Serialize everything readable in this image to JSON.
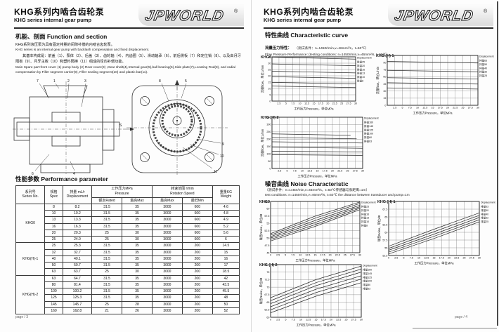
{
  "header": {
    "title_cn": "KHG系列内啮合齿轮泵",
    "title_en": "KHG series internal gear pump",
    "logo": "JPWORLD",
    "logo_reg": "®"
  },
  "page_left": {
    "function_section": {
      "heading": "机能、剖面 Function and section",
      "paragraphs": [
        "KHG系列液压泵为具有固定排量的间隙补偿的内啮合齿轮泵。",
        "KHG series is an internal gear pump with backlash compensation and fixed displacement.",
        "其基本构成是：前盖（1）、泵体（2）、后盖（3）、齿轮轴（4）、内齿圈（5）、滑动轴承（6）、前后侧板（7）和定位销（8）、以及由月牙隔板（9）、月牙主板（10）和塑料隔棒（11）组成的径向补偿功能。",
        "Main Spare part:front cover (1)  pump body (2) Rear cover(3) ,Gear shaft(4),Internal gear(5),ball bearing(6),Side plate(7),Locating Rod(8), and radial compensation by Filler segment carrier(9), Filler sealing segment(10) and plastic bar(11)."
      ]
    },
    "diagram": {
      "callouts": [
        "7",
        "1",
        "2",
        "3",
        "6",
        "4",
        "8",
        "5",
        "9",
        "10",
        "11"
      ],
      "s_label": "S"
    },
    "performance": {
      "heading": "性能参数 Performance parameter",
      "table": {
        "headers": {
          "series_cn": "系列号",
          "series_en": "Series No.",
          "spec_cn": "规格",
          "spec_en": "Spec",
          "disp_cn": "排量 mL/r",
          "disp_en": "Displacement",
          "pressure_cn": "工作压力MPa",
          "pressure_en": "Pressure",
          "rated": "额定Rated",
          "pmax": "最高Max",
          "speed_cn": "转速范围 r/min",
          "speed_en": "Rotation Speed",
          "smax": "最高Max",
          "smin": "最低Min",
          "weight_cn": "重量KG",
          "weight_en": "Weight"
        },
        "groups": [
          {
            "series": "KHG0",
            "rows": [
              [
                "8",
                "8.2",
                "31.5",
                "35",
                "3000",
                "600",
                "4.6"
              ],
              [
                "10",
                "10.2",
                "31.5",
                "35",
                "3000",
                "600",
                "4.8"
              ],
              [
                "13",
                "13.3",
                "31.5",
                "35",
                "3000",
                "600",
                "4.9"
              ],
              [
                "16",
                "16.3",
                "31.5",
                "35",
                "3000",
                "600",
                "5.2"
              ],
              [
                "20",
                "20.3",
                "25",
                "30",
                "3000",
                "600",
                "5.6"
              ],
              [
                "25",
                "24.0",
                "25",
                "30",
                "3000",
                "600",
                "6"
              ]
            ]
          },
          {
            "series": "KHG(H)-1",
            "rows": [
              [
                "25",
                "25.3",
                "31.5",
                "35",
                "3000",
                "200",
                "14.5"
              ],
              [
                "32",
                "32.7",
                "31.5",
                "35",
                "3000",
                "200",
                "15"
              ],
              [
                "40",
                "40.1",
                "31.5",
                "35",
                "3000",
                "200",
                "16"
              ],
              [
                "50",
                "50.7",
                "31.5",
                "35",
                "3000",
                "200",
                "17"
              ],
              [
                "63",
                "63.7",
                "25",
                "30",
                "3000",
                "200",
                "18.5"
              ]
            ]
          },
          {
            "series": "KHG(H)-2",
            "rows": [
              [
                "63",
                "64.7",
                "31.5",
                "35",
                "3000",
                "200",
                "42"
              ],
              [
                "80",
                "81.4",
                "31.5",
                "35",
                "3000",
                "200",
                "43.5"
              ],
              [
                "100",
                "100.2",
                "31.5",
                "35",
                "3000",
                "200",
                "45.5"
              ],
              [
                "125",
                "125.3",
                "31.5",
                "35",
                "3000",
                "200",
                "48"
              ],
              [
                "145",
                "145.7",
                "25",
                "28",
                "3000",
                "200",
                "50"
              ],
              [
                "160",
                "162.8",
                "21",
                "26",
                "3000",
                "200",
                "52"
              ]
            ]
          }
        ]
      }
    },
    "footer": "page / 3"
  },
  "page_right": {
    "curve_section": {
      "heading": "特性曲线 Characteristic  curve",
      "flow_label_cn": "流量压力特性：",
      "flow_cond_cn": "（测试条件：n=1450r/min,v=46mm²/s，t=50℃）",
      "flow_cond_en": "Flow  Pressure  Performance:  (testing conditions:  n=1450r/min,v=46mm²/s,  t=50℃)"
    },
    "noise_section": {
      "heading": "噪音曲线 Noise Characteristic",
      "cond_cn": "（测试条件：n=1450r/min,v=46mm²/s，t=50℃传感器与泵距离=1m）",
      "cond_en": "test conditions:  n=1450r/min,v=46mm²/s,  t=50℃  the  distance between transducer and pump=1m"
    },
    "footer": "page / 4"
  },
  "chart_data": [
    {
      "type": "line",
      "title": "KHG0",
      "xlabel": "工作压力Pressure，单位MPa",
      "ylabel": "流量flow，单位L/min",
      "legend_title": "Displacement",
      "legend_position": "right",
      "grid": true,
      "xlim": [
        0,
        30
      ],
      "ylim": [
        0,
        35
      ],
      "xticks": [
        2.5,
        5,
        7.5,
        10,
        12.5,
        15,
        17.5,
        20,
        22.5,
        25,
        27.5,
        30
      ],
      "yticks": [
        0,
        5,
        10,
        15,
        20,
        25,
        30,
        35
      ],
      "series": [
        {
          "label": "排量25",
          "points": [
            [
              0,
              34.8
            ],
            [
              30,
              33.2
            ]
          ]
        },
        {
          "label": "排量20",
          "points": [
            [
              0,
              29.4
            ],
            [
              30,
              28.0
            ]
          ]
        },
        {
          "label": "排量16",
          "points": [
            [
              0,
              23.6
            ],
            [
              30,
              22.3
            ]
          ]
        },
        {
          "label": "排量13",
          "points": [
            [
              0,
              19.3
            ],
            [
              30,
              18.0
            ]
          ]
        },
        {
          "label": "排量10",
          "points": [
            [
              0,
              14.8
            ],
            [
              30,
              13.6
            ]
          ]
        },
        {
          "label": "排量8",
          "points": [
            [
              0,
              11.9
            ],
            [
              30,
              10.7
            ]
          ]
        }
      ]
    },
    {
      "type": "line",
      "title": "KHG (H) 1",
      "xlabel": "工作压力Pressure，单位MPa",
      "ylabel": "流量flow，单位L/min",
      "legend_title": "Displacement",
      "legend_position": "right",
      "grid": true,
      "xlim": [
        0,
        30
      ],
      "ylim": [
        0,
        105
      ],
      "xticks": [
        2.5,
        5,
        7.5,
        10,
        12.5,
        15,
        17.5,
        20,
        22.5,
        25,
        27.5,
        30
      ],
      "yticks": [
        0,
        15,
        30,
        45,
        60,
        75,
        90,
        105
      ],
      "series": [
        {
          "label": "排量63",
          "points": [
            [
              0,
              92.4
            ],
            [
              30,
              89.0
            ]
          ]
        },
        {
          "label": "排量50",
          "points": [
            [
              0,
              73.5
            ],
            [
              30,
              70.5
            ]
          ]
        },
        {
          "label": "排量40",
          "points": [
            [
              0,
              58.1
            ],
            [
              30,
              55.5
            ]
          ]
        },
        {
          "label": "排量32",
          "points": [
            [
              0,
              47.4
            ],
            [
              30,
              44.8
            ]
          ]
        },
        {
          "label": "排量25",
          "points": [
            [
              0,
              36.7
            ],
            [
              30,
              34.2
            ]
          ]
        }
      ]
    },
    {
      "type": "line",
      "title": "KHG (H) 2",
      "xlabel": "工作压力Pressure，单位MPa",
      "ylabel": "流量flow，单位L/min",
      "legend_title": "Displacement",
      "legend_position": "right",
      "grid": true,
      "xlim": [
        0,
        30
      ],
      "ylim": [
        0,
        350
      ],
      "xticks": [
        2.5,
        5,
        7.5,
        10,
        12.5,
        15,
        17.5,
        20,
        22.5,
        25,
        27.5,
        30
      ],
      "yticks": [
        0,
        50,
        100,
        150,
        200,
        250,
        300,
        350
      ],
      "series": [
        {
          "label": "排量160",
          "points": [
            [
              0,
              236
            ],
            [
              26,
              227
            ]
          ]
        },
        {
          "label": "排量145",
          "points": [
            [
              0,
              211
            ],
            [
              28,
              203
            ]
          ]
        },
        {
          "label": "排量125",
          "points": [
            [
              0,
              182
            ],
            [
              30,
              174
            ]
          ]
        },
        {
          "label": "排量100",
          "points": [
            [
              0,
              145
            ],
            [
              30,
              138
            ]
          ]
        },
        {
          "label": "排量80",
          "points": [
            [
              0,
              118
            ],
            [
              30,
              112
            ]
          ]
        },
        {
          "label": "排量63",
          "points": [
            [
              0,
              94
            ],
            [
              30,
              89
            ]
          ]
        }
      ]
    },
    {
      "type": "line",
      "title": "KHG0",
      "xlabel": "工作压力Pressure，单位MPa",
      "ylabel": "噪音Noise，单位dB",
      "legend_title": "Displacement",
      "legend_position": "right",
      "grid": true,
      "xlim": [
        0,
        30
      ],
      "ylim": [
        45,
        62.5
      ],
      "xticks": [
        0,
        2.5,
        5,
        7.5,
        10,
        12.5,
        15,
        17.5,
        20,
        22.5,
        25,
        27.5,
        30
      ],
      "yticks": [
        45,
        47.5,
        50,
        52.5,
        55,
        57.5,
        60,
        62.5
      ],
      "series": [
        {
          "label": "排量25",
          "points": [
            [
              0,
              51.5
            ],
            [
              15,
              57.5
            ],
            [
              30,
              62.3
            ]
          ]
        },
        {
          "label": "排量20",
          "points": [
            [
              0,
              51.0
            ],
            [
              15,
              56.8
            ],
            [
              30,
              61.8
            ]
          ]
        },
        {
          "label": "排量16",
          "points": [
            [
              0,
              50.5
            ],
            [
              15,
              56.0
            ],
            [
              30,
              61.2
            ]
          ]
        },
        {
          "label": "排量13",
          "points": [
            [
              0,
              50.0
            ],
            [
              15,
              55.3
            ],
            [
              30,
              60.7
            ]
          ]
        },
        {
          "label": "排量10",
          "points": [
            [
              0,
              49.5
            ],
            [
              15,
              54.6
            ],
            [
              30,
              60.2
            ]
          ]
        },
        {
          "label": "排量8",
          "points": [
            [
              0,
              49.0
            ],
            [
              15,
              54.0
            ],
            [
              30,
              59.7
            ]
          ]
        }
      ]
    },
    {
      "type": "line",
      "title": "KHG (H) 1",
      "xlabel": "工作压力Pressure，单位MPa",
      "ylabel": "噪音Noise，单位dB",
      "legend_title": "Displacement",
      "legend_position": "right",
      "grid": true,
      "xlim": [
        0,
        30
      ],
      "ylim": [
        52.5,
        70
      ],
      "xticks": [
        0,
        2.5,
        5,
        7.5,
        10,
        12.5,
        15,
        17.5,
        20,
        22.5,
        25,
        27.5,
        30
      ],
      "yticks": [
        52.5,
        55,
        57.5,
        60,
        62.5,
        65,
        67.5,
        70
      ],
      "series": [
        {
          "label": "排量63",
          "points": [
            [
              0,
              55.5
            ],
            [
              15,
              61.0
            ],
            [
              30,
              66.3
            ]
          ]
        },
        {
          "label": "排量50",
          "points": [
            [
              0,
              54.8
            ],
            [
              15,
              60.2
            ],
            [
              30,
              65.5
            ]
          ]
        },
        {
          "label": "排量40",
          "points": [
            [
              0,
              54.2
            ],
            [
              15,
              59.4
            ],
            [
              30,
              64.8
            ]
          ]
        },
        {
          "label": "排量32",
          "points": [
            [
              0,
              53.6
            ],
            [
              15,
              58.7
            ],
            [
              30,
              64.1
            ]
          ]
        },
        {
          "label": "排量25",
          "points": [
            [
              0,
              53.0
            ],
            [
              15,
              58.0
            ],
            [
              30,
              63.4
            ]
          ]
        }
      ]
    },
    {
      "type": "line",
      "title": "KHG (H) 2",
      "xlabel": "工作压力Pressure，单位MPa",
      "ylabel": "噪音Noise，单位dB",
      "legend_title": "Displacement",
      "legend_position": "right",
      "grid": true,
      "xlim": [
        0,
        30
      ],
      "ylim": [
        60,
        77.5
      ],
      "xticks": [
        0,
        2.5,
        5,
        7.5,
        10,
        12.5,
        15,
        17.5,
        20,
        22.5,
        25,
        27.5,
        30
      ],
      "yticks": [
        60,
        62.5,
        65,
        67.5,
        70,
        72.5,
        75,
        77.5
      ],
      "series": [
        {
          "label": "排量160",
          "points": [
            [
              0,
              66.5
            ],
            [
              15,
              72.5
            ],
            [
              30,
              77.0
            ]
          ]
        },
        {
          "label": "排量145",
          "points": [
            [
              0,
              65.5
            ],
            [
              15,
              71.5
            ],
            [
              30,
              76.0
            ]
          ]
        },
        {
          "label": "排量125",
          "points": [
            [
              0,
              64.5
            ],
            [
              15,
              70.5
            ],
            [
              30,
              75.0
            ]
          ]
        },
        {
          "label": "排量100",
          "points": [
            [
              0,
              63.5
            ],
            [
              15,
              69.3
            ],
            [
              30,
              73.8
            ]
          ]
        },
        {
          "label": "排量80",
          "points": [
            [
              0,
              62.5
            ],
            [
              15,
              68.2
            ],
            [
              30,
              72.7
            ]
          ]
        },
        {
          "label": "排量63",
          "points": [
            [
              0,
              61.5
            ],
            [
              15,
              67.0
            ],
            [
              30,
              71.5
            ]
          ]
        }
      ]
    }
  ]
}
